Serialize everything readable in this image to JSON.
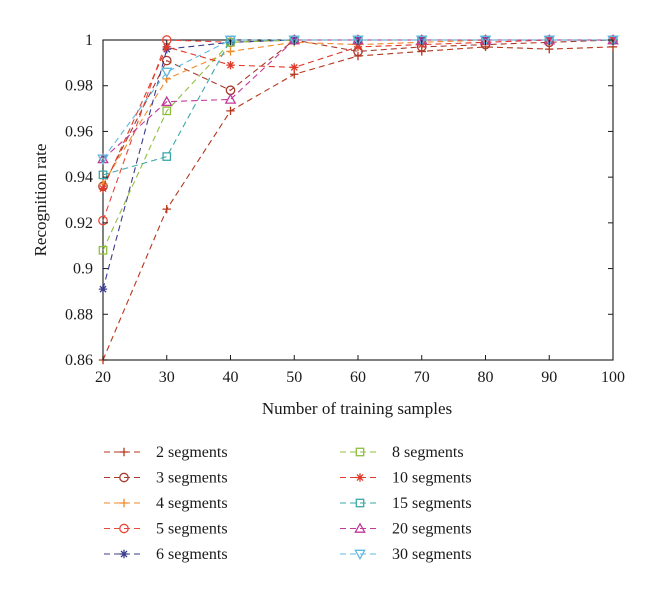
{
  "chart_data": {
    "type": "line",
    "xlabel": "Number of training samples",
    "ylabel": "Recognition rate",
    "xlim": [
      20,
      100
    ],
    "ylim": [
      0.86,
      1
    ],
    "xticks": [
      20,
      30,
      40,
      50,
      60,
      70,
      80,
      90,
      100
    ],
    "yticks": [
      0.86,
      0.88,
      0.9,
      0.92,
      0.94,
      0.96,
      0.98,
      1
    ],
    "ytick_labels": [
      "0.86",
      "0.88",
      "0.9",
      "0.92",
      "0.94",
      "0.96",
      "0.98",
      "1"
    ],
    "grid": false,
    "line_style": "dashed",
    "legend_position": "below",
    "x": [
      20,
      30,
      40,
      50,
      60,
      70,
      80,
      90,
      100
    ],
    "series": [
      {
        "name": "2 segments",
        "color": "#b5361c",
        "marker": "plus",
        "values": [
          0.86,
          0.926,
          0.969,
          0.985,
          0.993,
          0.995,
          0.997,
          0.996,
          0.997
        ]
      },
      {
        "name": "3 segments",
        "color": "#a83a2c",
        "marker": "circle",
        "values": [
          0.936,
          0.991,
          0.978,
          1.0,
          0.995,
          0.997,
          0.998,
          0.999,
          1.0
        ]
      },
      {
        "name": "4 segments",
        "color": "#f0892a",
        "marker": "plus",
        "values": [
          0.937,
          0.983,
          0.995,
          0.999,
          0.998,
          0.999,
          1.0,
          1.0,
          1.0
        ]
      },
      {
        "name": "5 segments",
        "color": "#e8473a",
        "marker": "circle",
        "values": [
          0.921,
          1.0,
          0.999,
          1.0,
          1.0,
          1.0,
          1.0,
          1.0,
          1.0
        ]
      },
      {
        "name": "6 segments",
        "color": "#3b3b8c",
        "marker": "asterisk",
        "values": [
          0.891,
          0.996,
          0.999,
          1.0,
          1.0,
          1.0,
          1.0,
          1.0,
          1.0
        ]
      },
      {
        "name": "8 segments",
        "color": "#8fbf3f",
        "marker": "square",
        "values": [
          0.908,
          0.969,
          0.999,
          1.0,
          1.0,
          1.0,
          1.0,
          1.0,
          1.0
        ]
      },
      {
        "name": "10 segments",
        "color": "#e03a2a",
        "marker": "asterisk",
        "values": [
          0.935,
          0.997,
          0.989,
          0.988,
          0.997,
          0.998,
          0.999,
          1.0,
          1.0
        ]
      },
      {
        "name": "15 segments",
        "color": "#3aa8a8",
        "marker": "square",
        "values": [
          0.941,
          0.949,
          1.0,
          1.0,
          1.0,
          1.0,
          1.0,
          1.0,
          1.0
        ]
      },
      {
        "name": "20 segments",
        "color": "#c0399a",
        "marker": "triangle",
        "values": [
          0.948,
          0.973,
          0.974,
          1.0,
          1.0,
          1.0,
          1.0,
          1.0,
          1.0
        ]
      },
      {
        "name": "30 segments",
        "color": "#5fb8e0",
        "marker": "triangle-down",
        "values": [
          0.948,
          0.986,
          1.0,
          1.0,
          1.0,
          1.0,
          1.0,
          1.0,
          1.0
        ]
      }
    ]
  }
}
